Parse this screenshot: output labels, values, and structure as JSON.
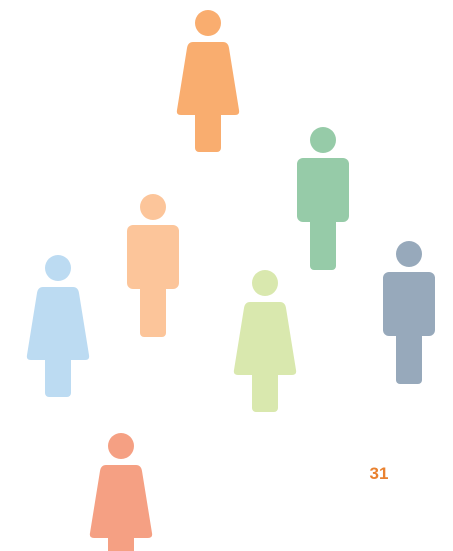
{
  "page_number": "31"
}
